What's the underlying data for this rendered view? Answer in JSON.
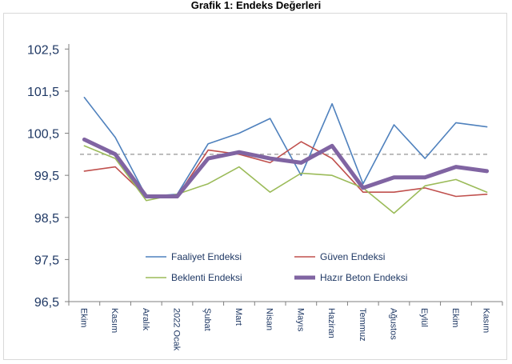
{
  "chart_data": {
    "type": "line",
    "title": "Grafik 1: Endeks Değerleri",
    "xlabel": "",
    "ylabel": "",
    "categories": [
      "Ekim",
      "Kasım",
      "Aralık",
      "2022 Ocak",
      "Şubat",
      "Mart",
      "Nisan",
      "Mayıs",
      "Haziran",
      "Temmuz",
      "Ağustos",
      "Eylül",
      "Ekim",
      "Kasım"
    ],
    "ylim": [
      96.5,
      103.0
    ],
    "yticks": [
      96.5,
      97.5,
      98.5,
      99.5,
      100.5,
      101.5,
      102.5
    ],
    "ytick_labels": [
      "96,5",
      "97,5",
      "98,5",
      "99,5",
      "100,5",
      "101,5",
      "102,5"
    ],
    "reference_line": 100,
    "grid": false,
    "legend_position": "bottom",
    "series": [
      {
        "name": "Faaliyet Endeksi",
        "color": "#4f81bd",
        "values": [
          101.35,
          100.4,
          99.0,
          99.05,
          100.25,
          100.5,
          100.85,
          99.5,
          101.2,
          99.3,
          100.7,
          99.9,
          100.75,
          100.65
        ]
      },
      {
        "name": "Güven Endeksi",
        "color": "#c0504d",
        "values": [
          99.6,
          99.7,
          99.0,
          99.0,
          100.1,
          100.0,
          99.8,
          100.3,
          99.9,
          99.1,
          99.1,
          99.2,
          99.0,
          99.05
        ]
      },
      {
        "name": "Beklenti Endeksi",
        "color": "#9bbb59",
        "values": [
          100.2,
          99.9,
          98.9,
          99.05,
          99.3,
          99.7,
          99.1,
          99.55,
          99.5,
          99.2,
          98.6,
          99.25,
          99.4,
          99.1
        ]
      },
      {
        "name": "Hazır Beton Endeksi",
        "color": "#8064a2",
        "values": [
          100.35,
          100.0,
          99.0,
          99.0,
          99.9,
          100.05,
          99.9,
          99.8,
          100.2,
          99.2,
          99.45,
          99.45,
          99.7,
          99.6
        ]
      }
    ]
  }
}
